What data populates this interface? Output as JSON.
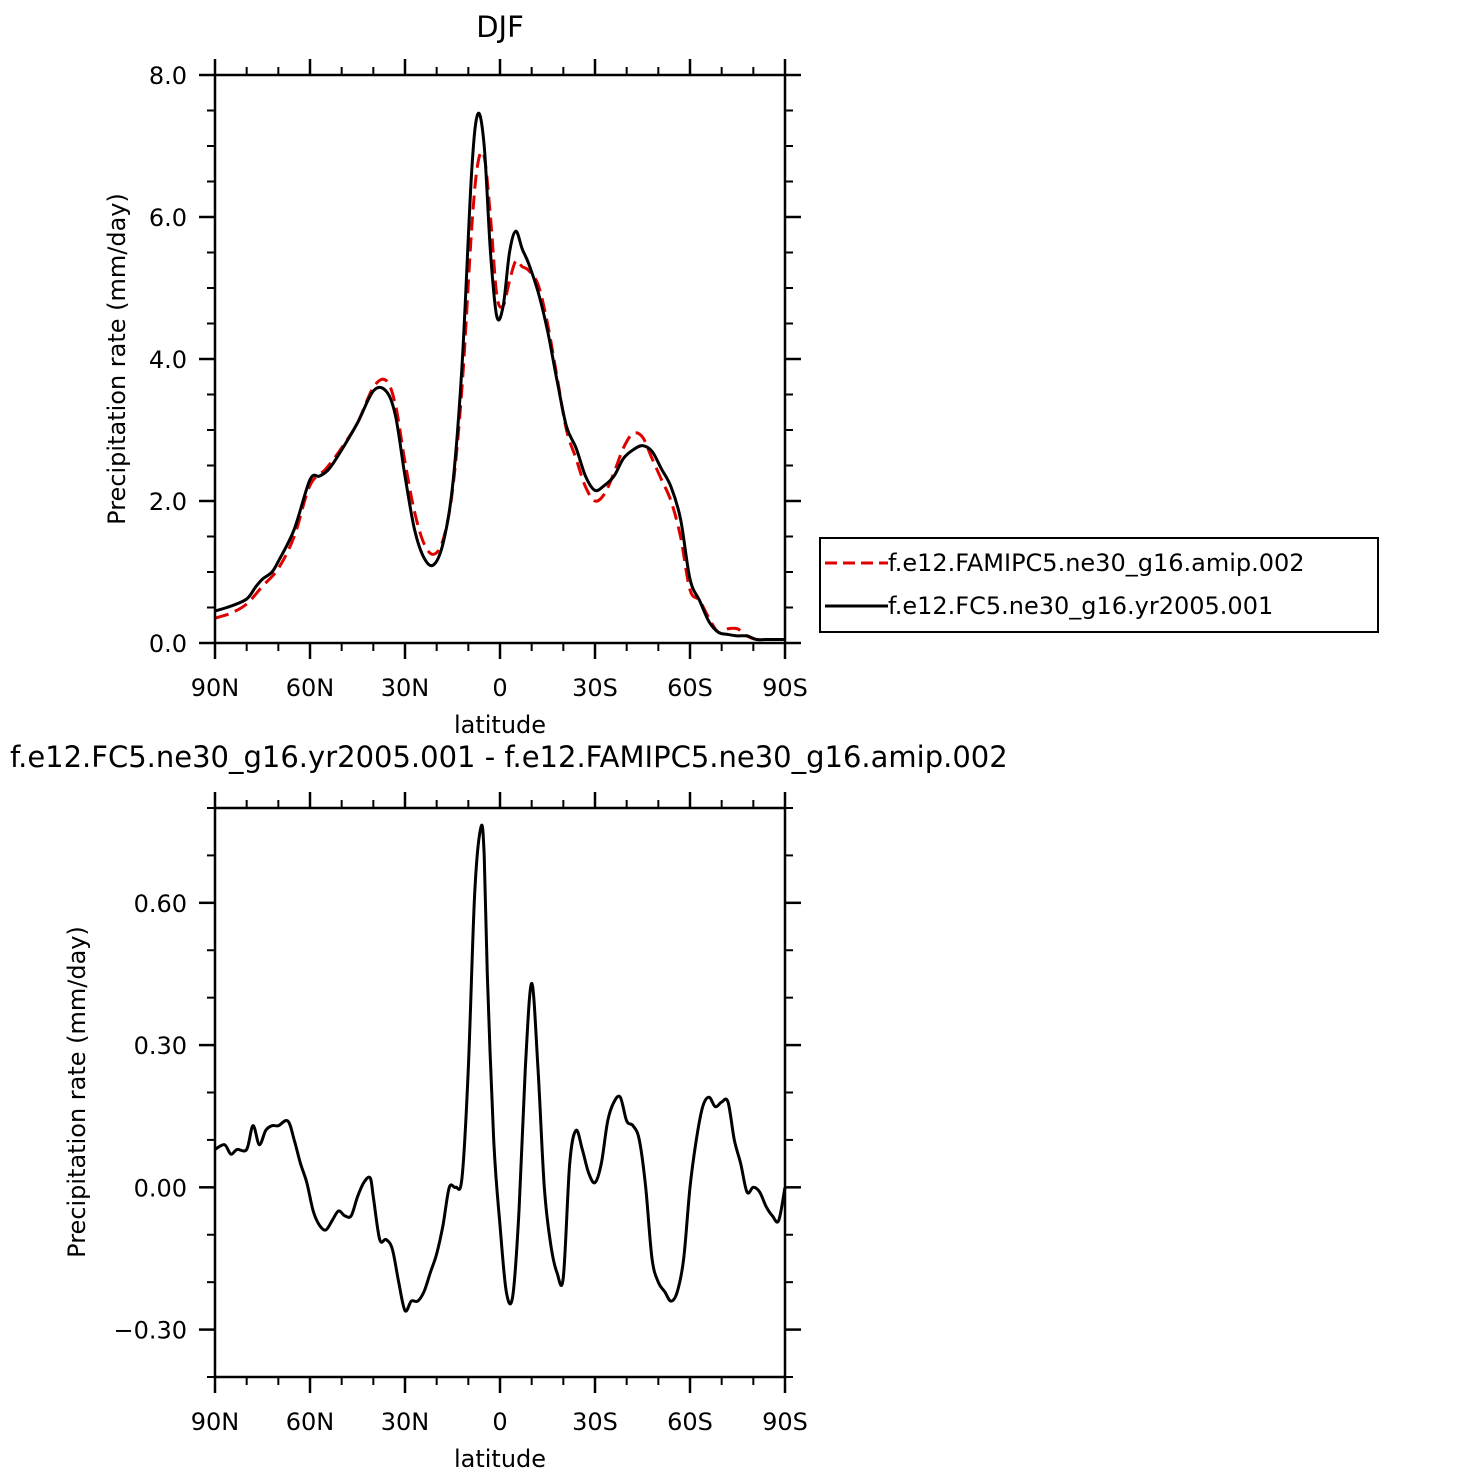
{
  "chart_data": [
    {
      "type": "line",
      "title": "DJF",
      "xlabel": "latitude",
      "ylabel": "Precipitation rate (mm/day)",
      "xlim": [
        90,
        -90
      ],
      "ylim": [
        0,
        8
      ],
      "x_ticks": [
        90,
        60,
        30,
        0,
        -30,
        -60,
        -90
      ],
      "x_tick_labels": [
        "90N",
        "60N",
        "30N",
        "0",
        "30S",
        "60S",
        "90S"
      ],
      "y_ticks": [
        0,
        2,
        4,
        6,
        8
      ],
      "y_tick_labels": [
        "0.0",
        "2.0",
        "4.0",
        "6.0",
        "8.0"
      ],
      "legend_position": "right",
      "series": [
        {
          "name": "f.e12.FAMIPC5.ne30_g16.amip.002",
          "color": "#e00000",
          "dash": "dashed",
          "x": [
            90,
            85,
            80,
            75,
            70,
            65,
            60,
            55,
            50,
            45,
            40,
            36,
            33,
            30,
            27,
            24,
            21,
            18,
            15,
            12,
            9,
            7,
            5,
            3,
            1,
            -1,
            -3,
            -5,
            -7,
            -9,
            -12,
            -15,
            -18,
            -21,
            -24,
            -27,
            -30,
            -33,
            -36,
            -39,
            -42,
            -45,
            -48,
            -51,
            -54,
            -57,
            -60,
            -63,
            -66,
            -69,
            -72,
            -75,
            -78,
            -81,
            -84,
            -87,
            -90
          ],
          "y": [
            0.35,
            0.42,
            0.55,
            0.8,
            1.05,
            1.5,
            2.22,
            2.45,
            2.75,
            3.1,
            3.6,
            3.7,
            3.35,
            2.55,
            1.85,
            1.4,
            1.25,
            1.45,
            2.15,
            3.6,
            5.8,
            6.75,
            6.85,
            6.0,
            4.9,
            4.75,
            5.1,
            5.38,
            5.3,
            5.25,
            5.05,
            4.5,
            3.75,
            3.0,
            2.6,
            2.2,
            2.0,
            2.1,
            2.4,
            2.75,
            2.95,
            2.9,
            2.6,
            2.3,
            2.0,
            1.5,
            0.75,
            0.6,
            0.35,
            0.15,
            0.2,
            0.2,
            0.1,
            0.05,
            0.05,
            0.05,
            0.05
          ]
        },
        {
          "name": "f.e12.FC5.ne30_g16.yr2005.001",
          "color": "#000000",
          "dash": "solid",
          "x": [
            90,
            85,
            80,
            77,
            75,
            72,
            70,
            65,
            60,
            57,
            54,
            50,
            45,
            40,
            36,
            33,
            30,
            27,
            24,
            21,
            18,
            15,
            12,
            9,
            7,
            5,
            3,
            1,
            -1,
            -3,
            -5,
            -7,
            -9,
            -12,
            -15,
            -18,
            -21,
            -24,
            -27,
            -30,
            -33,
            -36,
            -39,
            -42,
            -45,
            -48,
            -51,
            -54,
            -57,
            -60,
            -63,
            -66,
            -69,
            -72,
            -75,
            -78,
            -81,
            -84,
            -87,
            -90
          ],
          "y": [
            0.45,
            0.52,
            0.62,
            0.8,
            0.9,
            1.0,
            1.15,
            1.6,
            2.3,
            2.35,
            2.45,
            2.72,
            3.1,
            3.55,
            3.55,
            3.2,
            2.35,
            1.6,
            1.2,
            1.1,
            1.4,
            2.2,
            3.9,
            6.6,
            7.45,
            7.0,
            5.5,
            4.6,
            4.75,
            5.5,
            5.8,
            5.55,
            5.35,
            4.95,
            4.4,
            3.7,
            3.05,
            2.75,
            2.35,
            2.15,
            2.22,
            2.35,
            2.6,
            2.72,
            2.78,
            2.7,
            2.45,
            2.2,
            1.75,
            0.9,
            0.6,
            0.3,
            0.15,
            0.12,
            0.1,
            0.1,
            0.05,
            0.05,
            0.05,
            0.05
          ]
        }
      ]
    },
    {
      "type": "line",
      "title": "f.e12.FC5.ne30_g16.yr2005.001 - f.e12.FAMIPC5.ne30_g16.amip.002",
      "xlabel": "latitude",
      "ylabel": "Precipitation rate (mm/day)",
      "xlim": [
        90,
        -90
      ],
      "ylim": [
        -0.4,
        0.8
      ],
      "x_ticks": [
        90,
        60,
        30,
        0,
        -30,
        -60,
        -90
      ],
      "x_tick_labels": [
        "90N",
        "60N",
        "30N",
        "0",
        "30S",
        "60S",
        "90S"
      ],
      "y_ticks": [
        -0.3,
        0.0,
        0.3,
        0.6
      ],
      "y_tick_labels": [
        "−0.30",
        "0.00",
        "0.30",
        "0.60"
      ],
      "series": [
        {
          "color": "#000000",
          "dash": "solid",
          "x": [
            90,
            87,
            85,
            83,
            80,
            78,
            76,
            74,
            72,
            70,
            67,
            65,
            63,
            61,
            59,
            57,
            55,
            53,
            51,
            49,
            47,
            45,
            43,
            41,
            40,
            38,
            36,
            34,
            32,
            30,
            28,
            26,
            24,
            22,
            20,
            18,
            16,
            14,
            12,
            10,
            8,
            6,
            5,
            4,
            2,
            0,
            -2,
            -4,
            -6,
            -8,
            -10,
            -12,
            -14,
            -16,
            -18,
            -20,
            -22,
            -24,
            -26,
            -28,
            -30,
            -32,
            -34,
            -36,
            -38,
            -40,
            -42,
            -44,
            -46,
            -48,
            -50,
            -52,
            -54,
            -56,
            -58,
            -60,
            -62,
            -64,
            -66,
            -68,
            -70,
            -72,
            -74,
            -76,
            -78,
            -80,
            -82,
            -84,
            -86,
            -88,
            -90
          ],
          "y": [
            0.08,
            0.09,
            0.07,
            0.08,
            0.08,
            0.13,
            0.09,
            0.12,
            0.13,
            0.13,
            0.14,
            0.1,
            0.05,
            0.01,
            -0.05,
            -0.08,
            -0.09,
            -0.07,
            -0.05,
            -0.06,
            -0.06,
            -0.02,
            0.01,
            0.02,
            -0.02,
            -0.11,
            -0.11,
            -0.13,
            -0.2,
            -0.26,
            -0.24,
            -0.24,
            -0.22,
            -0.18,
            -0.14,
            -0.08,
            0.0,
            0.0,
            0.02,
            0.25,
            0.62,
            0.76,
            0.7,
            0.45,
            0.1,
            -0.08,
            -0.22,
            -0.23,
            -0.05,
            0.25,
            0.43,
            0.25,
            0.0,
            -0.12,
            -0.18,
            -0.19,
            0.05,
            0.12,
            0.08,
            0.03,
            0.01,
            0.05,
            0.14,
            0.18,
            0.19,
            0.14,
            0.13,
            0.1,
            0.0,
            -0.15,
            -0.2,
            -0.22,
            -0.24,
            -0.22,
            -0.15,
            0.0,
            0.1,
            0.17,
            0.19,
            0.17,
            0.18,
            0.18,
            0.1,
            0.05,
            -0.01,
            0.0,
            -0.01,
            -0.04,
            -0.06,
            -0.07,
            0.0
          ]
        }
      ]
    }
  ]
}
